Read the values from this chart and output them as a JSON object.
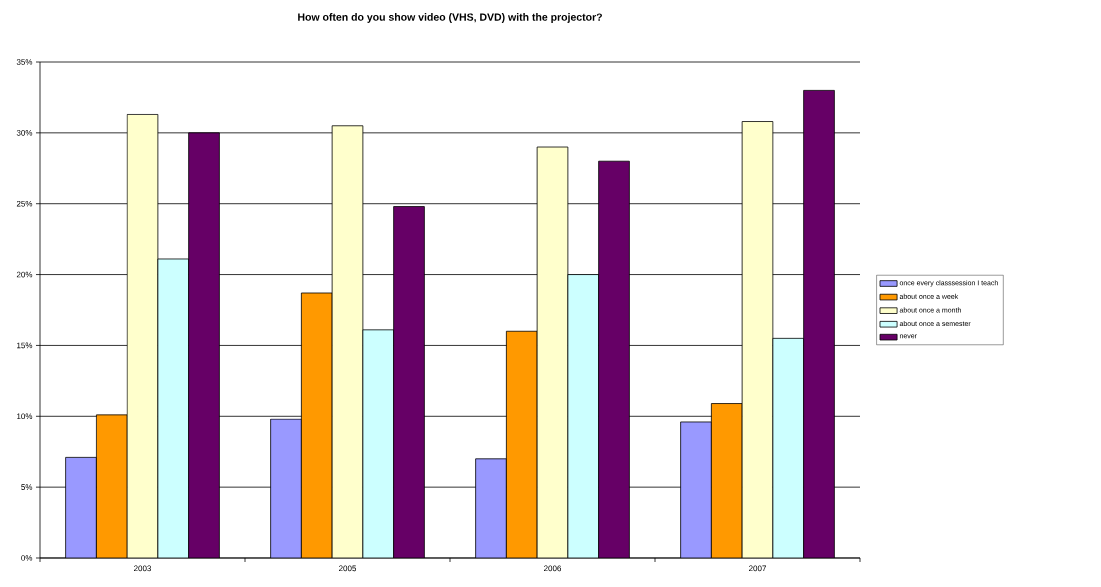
{
  "chart_data": {
    "type": "bar",
    "title": "How often do you show video (VHS, DVD) with the projector?",
    "categories": [
      "2003",
      "2005",
      "2006",
      "2007"
    ],
    "series": [
      {
        "name": "once every classsession I teach",
        "color": "#9999ff",
        "values": [
          7.1,
          9.8,
          7.0,
          9.6
        ]
      },
      {
        "name": "about once a week",
        "color": "#ff9900",
        "values": [
          10.1,
          18.7,
          16.0,
          10.9
        ]
      },
      {
        "name": "about once a month",
        "color": "#ffffcc",
        "values": [
          31.3,
          30.5,
          29.0,
          30.8
        ]
      },
      {
        "name": "about once a semester",
        "color": "#ccffff",
        "values": [
          21.1,
          16.1,
          20.0,
          15.5
        ]
      },
      {
        "name": "never",
        "color": "#660066",
        "values": [
          30.0,
          24.8,
          28.0,
          33.0
        ]
      }
    ],
    "ylim": [
      0,
      35
    ],
    "yticks": [
      {
        "value": 0,
        "label": "0%"
      },
      {
        "value": 5,
        "label": "5%"
      },
      {
        "value": 10,
        "label": "10%"
      },
      {
        "value": 15,
        "label": "15%"
      },
      {
        "value": 20,
        "label": "20%"
      },
      {
        "value": 25,
        "label": "25%"
      },
      {
        "value": 30,
        "label": "30%"
      },
      {
        "value": 35,
        "label": "35%"
      }
    ],
    "grid": "y",
    "legend": "right"
  }
}
